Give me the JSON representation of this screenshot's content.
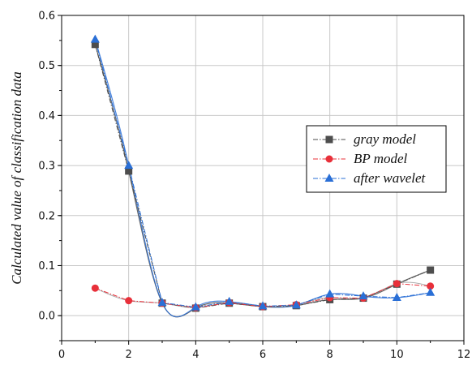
{
  "chart_data": {
    "type": "line",
    "title": "",
    "xlabel": "",
    "ylabel": "Calculated value of classification data",
    "xlim": [
      0,
      12
    ],
    "ylim": [
      -0.05,
      0.6
    ],
    "xticks": [
      0,
      2,
      4,
      6,
      8,
      10,
      12
    ],
    "yticks": [
      0.0,
      0.1,
      0.2,
      0.3,
      0.4,
      0.5,
      0.6
    ],
    "ytick_labels": [
      "0.0",
      "0.1",
      "0.2",
      "0.3",
      "0.4",
      "0.5",
      "0.6"
    ],
    "xtick_labels": [
      "0",
      "2",
      "4",
      "6",
      "8",
      "10",
      "12"
    ],
    "grid": true,
    "legend_position": "right-middle",
    "x": [
      1,
      2,
      3,
      4,
      5,
      6,
      7,
      8,
      9,
      10,
      11
    ],
    "series": [
      {
        "name": "gray model",
        "marker": "square",
        "color": "#4d4d4d",
        "values": [
          0.542,
          0.289,
          0.025,
          0.015,
          0.025,
          0.018,
          0.02,
          0.032,
          0.035,
          0.063,
          0.091
        ]
      },
      {
        "name": "BP model",
        "marker": "circle",
        "color": "#e8303a",
        "values": [
          0.055,
          0.03,
          0.025,
          0.016,
          0.026,
          0.018,
          0.022,
          0.036,
          0.035,
          0.064,
          0.059
        ]
      },
      {
        "name": "after wavelet",
        "marker": "triangle",
        "color": "#2a6fd6",
        "values": [
          0.552,
          0.3,
          0.026,
          0.017,
          0.028,
          0.019,
          0.021,
          0.043,
          0.039,
          0.036,
          0.046
        ]
      }
    ]
  }
}
